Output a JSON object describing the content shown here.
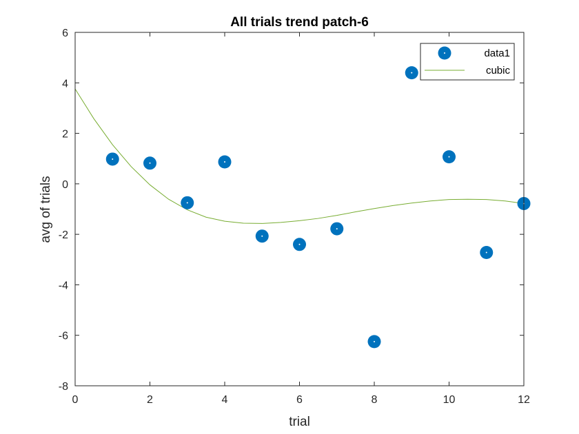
{
  "chart_data": {
    "type": "scatter",
    "title": "All trials trend patch-6",
    "xlabel": "trial",
    "ylabel": "avg of trials",
    "xlim": [
      0,
      12
    ],
    "ylim": [
      -8,
      6
    ],
    "xticks": [
      "0",
      "2",
      "4",
      "6",
      "8",
      "10",
      "12"
    ],
    "yticks": [
      "-8",
      "-6",
      "-4",
      "-2",
      "0",
      "2",
      "4",
      "6"
    ],
    "grid": false,
    "legend": {
      "placement": "top-right"
    },
    "series": [
      {
        "name": "data1",
        "style": "markers",
        "color": "#0072BD",
        "x": [
          1,
          2,
          3,
          4,
          5,
          6,
          7,
          8,
          9,
          10,
          11,
          12
        ],
        "y": [
          0.98,
          0.82,
          -0.75,
          0.87,
          -2.07,
          -2.4,
          -1.78,
          -6.25,
          4.4,
          1.07,
          -2.72,
          -0.78
        ]
      },
      {
        "name": "cubic",
        "style": "line",
        "color": "#77AC30",
        "x": [
          0,
          0.5,
          1,
          1.5,
          2,
          2.5,
          3,
          3.5,
          4,
          4.5,
          5,
          5.5,
          6,
          6.5,
          7,
          7.5,
          8,
          8.5,
          9,
          9.5,
          10,
          10.5,
          11,
          11.5,
          12
        ],
        "y": [
          3.76,
          2.58,
          1.55,
          0.68,
          -0.04,
          -0.61,
          -1.03,
          -1.32,
          -1.48,
          -1.56,
          -1.57,
          -1.53,
          -1.46,
          -1.37,
          -1.25,
          -1.11,
          -0.98,
          -0.86,
          -0.76,
          -0.68,
          -0.62,
          -0.61,
          -0.62,
          -0.68,
          -0.78
        ]
      }
    ]
  }
}
